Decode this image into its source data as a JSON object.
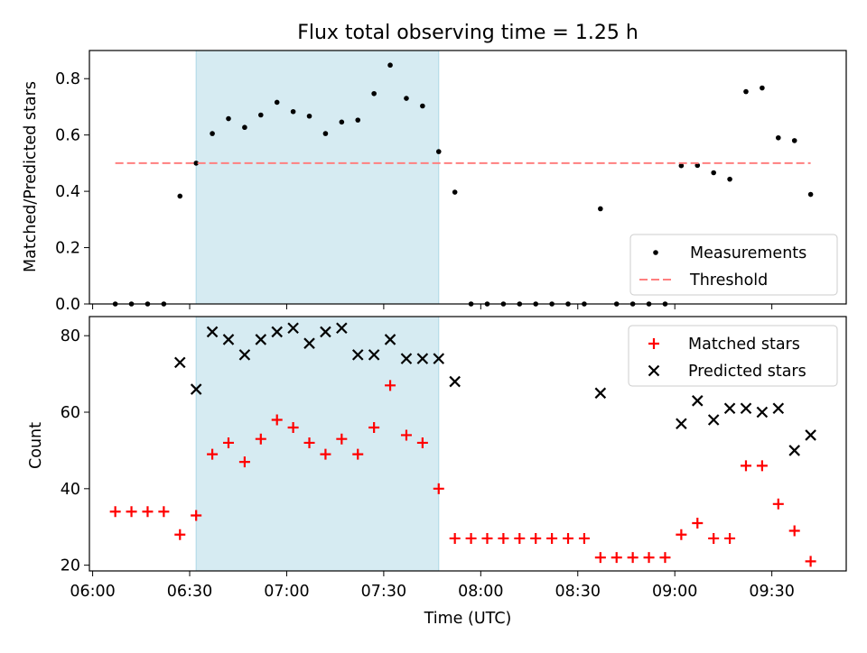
{
  "chart_data": [
    {
      "type": "scatter",
      "title": "Flux total observing time = 1.25 h",
      "xlabel": "",
      "ylabel": "Matched/Predicted stars",
      "ylim": [
        0,
        0.9
      ],
      "yticks": [
        "0.0",
        "0.2",
        "0.4",
        "0.6",
        "0.8"
      ],
      "xlim": [
        "05:59",
        "09:53"
      ],
      "shaded_span": [
        "06:32",
        "07:47"
      ],
      "legend_position": "lower-right",
      "series": [
        {
          "name": "Measurements",
          "marker": "dot",
          "color": "#000000",
          "points": [
            [
              "06:07",
              0.0
            ],
            [
              "06:12",
              0.0
            ],
            [
              "06:17",
              0.0
            ],
            [
              "06:22",
              0.0
            ],
            [
              "06:27",
              0.383
            ],
            [
              "06:32",
              0.5
            ],
            [
              "06:37",
              0.605
            ],
            [
              "06:42",
              0.658
            ],
            [
              "06:47",
              0.627
            ],
            [
              "06:52",
              0.671
            ],
            [
              "06:57",
              0.716
            ],
            [
              "07:02",
              0.683
            ],
            [
              "07:07",
              0.667
            ],
            [
              "07:12",
              0.605
            ],
            [
              "07:17",
              0.646
            ],
            [
              "07:22",
              0.653
            ],
            [
              "07:27",
              0.747
            ],
            [
              "07:32",
              0.848
            ],
            [
              "07:37",
              0.73
            ],
            [
              "07:42",
              0.703
            ],
            [
              "07:47",
              0.541
            ],
            [
              "07:52",
              0.397
            ],
            [
              "07:57",
              0.0
            ],
            [
              "08:02",
              0.0
            ],
            [
              "08:07",
              0.0
            ],
            [
              "08:12",
              0.0
            ],
            [
              "08:17",
              0.0
            ],
            [
              "08:22",
              0.0
            ],
            [
              "08:27",
              0.0
            ],
            [
              "08:32",
              0.0
            ],
            [
              "08:37",
              0.338
            ],
            [
              "08:42",
              0.0
            ],
            [
              "08:47",
              0.0
            ],
            [
              "08:52",
              0.0
            ],
            [
              "08:57",
              0.0
            ],
            [
              "09:02",
              0.491
            ],
            [
              "09:07",
              0.492
            ],
            [
              "09:12",
              0.466
            ],
            [
              "09:17",
              0.443
            ],
            [
              "09:22",
              0.754
            ],
            [
              "09:27",
              0.767
            ],
            [
              "09:32",
              0.59
            ],
            [
              "09:37",
              0.58
            ],
            [
              "09:42",
              0.389
            ]
          ]
        },
        {
          "name": "Threshold",
          "style": "dashed-line",
          "color": "#ff7f7f",
          "points": [
            [
              "06:07",
              0.5
            ],
            [
              "09:42",
              0.5
            ]
          ]
        }
      ]
    },
    {
      "type": "scatter",
      "title": "",
      "xlabel": "Time (UTC)",
      "ylabel": "Count",
      "ylim": [
        18.5,
        85
      ],
      "yticks": [
        "20",
        "40",
        "60",
        "80"
      ],
      "xlim": [
        "05:59",
        "09:53"
      ],
      "xticks": [
        "06:00",
        "06:30",
        "07:00",
        "07:30",
        "08:00",
        "08:30",
        "09:00",
        "09:30"
      ],
      "shaded_span": [
        "06:32",
        "07:47"
      ],
      "legend_position": "upper-right",
      "series": [
        {
          "name": "Matched stars",
          "marker": "plus",
          "color": "#ff0000",
          "points": [
            [
              "06:07",
              34
            ],
            [
              "06:12",
              34
            ],
            [
              "06:17",
              34
            ],
            [
              "06:22",
              34
            ],
            [
              "06:27",
              28
            ],
            [
              "06:32",
              33
            ],
            [
              "06:37",
              49
            ],
            [
              "06:42",
              52
            ],
            [
              "06:47",
              47
            ],
            [
              "06:52",
              53
            ],
            [
              "06:57",
              58
            ],
            [
              "07:02",
              56
            ],
            [
              "07:07",
              52
            ],
            [
              "07:12",
              49
            ],
            [
              "07:17",
              53
            ],
            [
              "07:22",
              49
            ],
            [
              "07:27",
              56
            ],
            [
              "07:32",
              67
            ],
            [
              "07:37",
              54
            ],
            [
              "07:42",
              52
            ],
            [
              "07:47",
              40
            ],
            [
              "07:52",
              27
            ],
            [
              "07:57",
              27
            ],
            [
              "08:02",
              27
            ],
            [
              "08:07",
              27
            ],
            [
              "08:12",
              27
            ],
            [
              "08:17",
              27
            ],
            [
              "08:22",
              27
            ],
            [
              "08:27",
              27
            ],
            [
              "08:32",
              27
            ],
            [
              "08:37",
              22
            ],
            [
              "08:42",
              22
            ],
            [
              "08:47",
              22
            ],
            [
              "08:52",
              22
            ],
            [
              "08:57",
              22
            ],
            [
              "09:02",
              28
            ],
            [
              "09:07",
              31
            ],
            [
              "09:12",
              27
            ],
            [
              "09:17",
              27
            ],
            [
              "09:22",
              46
            ],
            [
              "09:27",
              46
            ],
            [
              "09:32",
              36
            ],
            [
              "09:37",
              29
            ],
            [
              "09:42",
              21
            ]
          ]
        },
        {
          "name": "Predicted stars",
          "marker": "x",
          "color": "#000000",
          "points": [
            [
              "06:27",
              73
            ],
            [
              "06:32",
              66
            ],
            [
              "06:37",
              81
            ],
            [
              "06:42",
              79
            ],
            [
              "06:47",
              75
            ],
            [
              "06:52",
              79
            ],
            [
              "06:57",
              81
            ],
            [
              "07:02",
              82
            ],
            [
              "07:07",
              78
            ],
            [
              "07:12",
              81
            ],
            [
              "07:17",
              82
            ],
            [
              "07:22",
              75
            ],
            [
              "07:27",
              75
            ],
            [
              "07:32",
              79
            ],
            [
              "07:37",
              74
            ],
            [
              "07:42",
              74
            ],
            [
              "07:47",
              74
            ],
            [
              "07:52",
              68
            ],
            [
              "08:37",
              65
            ],
            [
              "09:02",
              57
            ],
            [
              "09:07",
              63
            ],
            [
              "09:12",
              58
            ],
            [
              "09:17",
              61
            ],
            [
              "09:22",
              61
            ],
            [
              "09:27",
              60
            ],
            [
              "09:32",
              61
            ],
            [
              "09:37",
              50
            ],
            [
              "09:42",
              54
            ]
          ]
        }
      ]
    }
  ]
}
